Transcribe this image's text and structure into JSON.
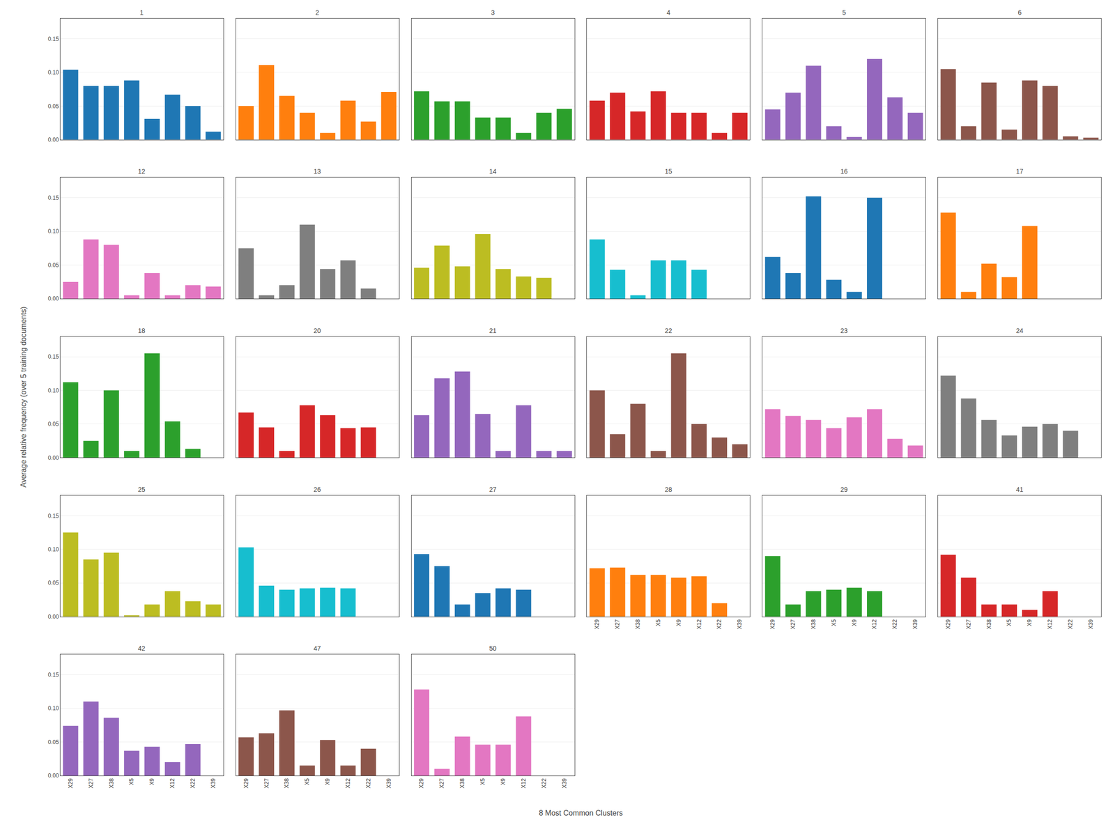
{
  "xlabel": "8 Most Common Clusters",
  "ylabel": "Average relative frequency (over 5 training documents)",
  "chart_data": [
    {
      "type": "bar",
      "title": "1",
      "categories": [
        "X29",
        "X27",
        "X38",
        "X5",
        "X9",
        "X12",
        "X22",
        "X39"
      ],
      "values": [
        0.104,
        0.08,
        0.08,
        0.088,
        0.031,
        0.067,
        0.05,
        0.012
      ],
      "ylim": [
        0.0,
        0.18
      ],
      "yticks": [
        {
          "value": 0.0,
          "label": "0.00"
        },
        0.05,
        {
          "value": 0.1,
          "label": "0.10"
        },
        0.15
      ],
      "grid": true,
      "tick_labels": "y"
    },
    {
      "type": "bar",
      "title": "2",
      "categories": [
        "X29",
        "X27",
        "X38",
        "X5",
        "X9",
        "X12",
        "X22",
        "X39"
      ],
      "values": [
        0.05,
        0.111,
        0.065,
        0.04,
        0.01,
        0.058,
        0.027,
        0.071
      ],
      "ylim": [
        0.0,
        0.18
      ],
      "yticks": [
        {
          "value": 0.0,
          "label": "0.00"
        },
        0.05,
        {
          "value": 0.1,
          "label": "0.10"
        },
        0.15
      ],
      "grid": true,
      "tick_labels": false
    },
    {
      "type": "bar",
      "title": "3",
      "categories": [
        "X29",
        "X27",
        "X38",
        "X5",
        "X9",
        "X12",
        "X22",
        "X39"
      ],
      "values": [
        0.072,
        0.057,
        0.057,
        0.033,
        0.033,
        0.01,
        0.04,
        0.046
      ],
      "ylim": [
        0.0,
        0.18
      ],
      "yticks": [
        {
          "value": 0.0,
          "label": "0.00"
        },
        0.05,
        {
          "value": 0.1,
          "label": "0.10"
        },
        0.15
      ],
      "grid": true,
      "tick_labels": false
    },
    {
      "type": "bar",
      "title": "4",
      "categories": [
        "X29",
        "X27",
        "X38",
        "X5",
        "X9",
        "X12",
        "X22",
        "X39"
      ],
      "values": [
        0.058,
        0.07,
        0.042,
        0.072,
        0.04,
        0.04,
        0.01,
        0.04
      ],
      "ylim": [
        0.0,
        0.18
      ],
      "yticks": [
        {
          "value": 0.0,
          "label": "0.00"
        },
        0.05,
        {
          "value": 0.1,
          "label": "0.10"
        },
        0.15
      ],
      "grid": true,
      "tick_labels": false
    },
    {
      "type": "bar",
      "title": "5",
      "categories": [
        "X29",
        "X27",
        "X38",
        "X5",
        "X9",
        "X12",
        "X22",
        "X39"
      ],
      "values": [
        0.045,
        0.07,
        0.11,
        0.02,
        0.004,
        0.12,
        0.063,
        0.04
      ],
      "ylim": [
        0.0,
        0.18
      ],
      "yticks": [
        {
          "value": 0.0,
          "label": "0.00"
        },
        0.05,
        {
          "value": 0.1,
          "label": "0.10"
        },
        0.15
      ],
      "grid": true,
      "tick_labels": false
    },
    {
      "type": "bar",
      "title": "6",
      "categories": [
        "X29",
        "X27",
        "X38",
        "X5",
        "X9",
        "X12",
        "X22",
        "X39"
      ],
      "values": [
        0.105,
        0.02,
        0.085,
        0.015,
        0.088,
        0.08,
        0.005,
        0.003
      ],
      "ylim": [
        0.0,
        0.18
      ],
      "yticks": [
        {
          "value": 0.0,
          "label": "0.00"
        },
        0.05,
        {
          "value": 0.1,
          "label": "0.10"
        },
        0.15
      ],
      "grid": true,
      "tick_labels": false
    },
    {
      "type": "bar",
      "title": "12",
      "categories": [
        "X29",
        "X27",
        "X38",
        "X5",
        "X9",
        "X12",
        "X22",
        "X39"
      ],
      "values": [
        0.025,
        0.088,
        0.08,
        0.005,
        0.038,
        0.005,
        0.02,
        0.018
      ],
      "ylim": [
        0.0,
        0.18
      ],
      "yticks": [
        {
          "value": 0.0,
          "label": "0.00"
        },
        0.05,
        {
          "value": 0.1,
          "label": "0.10"
        },
        0.15
      ],
      "grid": true,
      "tick_labels": "y"
    },
    {
      "type": "bar",
      "title": "13",
      "categories": [
        "X29",
        "X27",
        "X38",
        "X5",
        "X9",
        "X12",
        "X22",
        "X39"
      ],
      "values": [
        0.075,
        0.005,
        0.02,
        0.11,
        0.044,
        0.057,
        0.015,
        0.0
      ],
      "ylim": [
        0.0,
        0.18
      ],
      "yticks": [
        {
          "value": 0.0,
          "label": "0.00"
        },
        0.05,
        {
          "value": 0.1,
          "label": "0.10"
        },
        0.15
      ],
      "grid": true,
      "tick_labels": false
    },
    {
      "type": "bar",
      "title": "14",
      "categories": [
        "X29",
        "X27",
        "X38",
        "X5",
        "X9",
        "X12",
        "X22",
        "X39"
      ],
      "values": [
        0.046,
        0.079,
        0.048,
        0.096,
        0.044,
        0.033,
        0.031,
        0.0
      ],
      "ylim": [
        0.0,
        0.18
      ],
      "yticks": [
        {
          "value": 0.0,
          "label": "0.00"
        },
        0.05,
        {
          "value": 0.1,
          "label": "0.10"
        },
        0.15
      ],
      "grid": true,
      "tick_labels": false
    },
    {
      "type": "bar",
      "title": "15",
      "categories": [
        "X29",
        "X27",
        "X38",
        "X5",
        "X9",
        "X12",
        "X22",
        "X39"
      ],
      "values": [
        0.088,
        0.043,
        0.005,
        0.057,
        0.057,
        0.043,
        0.0,
        0.0
      ],
      "ylim": [
        0.0,
        0.18
      ],
      "yticks": [
        {
          "value": 0.0,
          "label": "0.00"
        },
        0.05,
        {
          "value": 0.1,
          "label": "0.10"
        },
        0.15
      ],
      "grid": true,
      "tick_labels": false
    },
    {
      "type": "bar",
      "title": "16",
      "categories": [
        "X29",
        "X27",
        "X38",
        "X5",
        "X9",
        "X12",
        "X22",
        "X39"
      ],
      "values": [
        0.062,
        0.038,
        0.152,
        0.028,
        0.01,
        0.15,
        0.0,
        0.0
      ],
      "ylim": [
        0.0,
        0.18
      ],
      "yticks": [
        {
          "value": 0.0,
          "label": "0.00"
        },
        0.05,
        {
          "value": 0.1,
          "label": "0.10"
        },
        0.15
      ],
      "grid": true,
      "tick_labels": false
    },
    {
      "type": "bar",
      "title": "17",
      "categories": [
        "X29",
        "X27",
        "X38",
        "X5",
        "X9",
        "X12",
        "X22",
        "X39"
      ],
      "values": [
        0.128,
        0.01,
        0.052,
        0.032,
        0.108,
        0.0,
        0.0,
        0.0
      ],
      "ylim": [
        0.0,
        0.18
      ],
      "yticks": [
        {
          "value": 0.0,
          "label": "0.00"
        },
        0.05,
        {
          "value": 0.1,
          "label": "0.10"
        },
        0.15
      ],
      "grid": true,
      "tick_labels": false
    },
    {
      "type": "bar",
      "title": "18",
      "categories": [
        "X29",
        "X27",
        "X38",
        "X5",
        "X9",
        "X12",
        "X22",
        "X39"
      ],
      "values": [
        0.112,
        0.025,
        0.1,
        0.01,
        0.155,
        0.054,
        0.013,
        0.0
      ],
      "ylim": [
        0.0,
        0.18
      ],
      "yticks": [
        {
          "value": 0.0,
          "label": "0.00"
        },
        0.05,
        {
          "value": 0.1,
          "label": "0.10"
        },
        0.15
      ],
      "grid": true,
      "tick_labels": "y"
    },
    {
      "type": "bar",
      "title": "20",
      "categories": [
        "X29",
        "X27",
        "X38",
        "X5",
        "X9",
        "X12",
        "X22",
        "X39"
      ],
      "values": [
        0.067,
        0.045,
        0.01,
        0.078,
        0.063,
        0.044,
        0.045,
        0.0
      ],
      "ylim": [
        0.0,
        0.18
      ],
      "yticks": [
        {
          "value": 0.0,
          "label": "0.00"
        },
        0.05,
        {
          "value": 0.1,
          "label": "0.10"
        },
        0.15
      ],
      "grid": true,
      "tick_labels": false
    },
    {
      "type": "bar",
      "title": "21",
      "categories": [
        "X29",
        "X27",
        "X38",
        "X5",
        "X9",
        "X12",
        "X22",
        "X39"
      ],
      "values": [
        0.063,
        0.118,
        0.128,
        0.065,
        0.01,
        0.078,
        0.01,
        0.01
      ],
      "ylim": [
        0.0,
        0.18
      ],
      "yticks": [
        {
          "value": 0.0,
          "label": "0.00"
        },
        0.05,
        {
          "value": 0.1,
          "label": "0.10"
        },
        0.15
      ],
      "grid": true,
      "tick_labels": false
    },
    {
      "type": "bar",
      "title": "22",
      "categories": [
        "X29",
        "X27",
        "X38",
        "X5",
        "X9",
        "X12",
        "X22",
        "X39"
      ],
      "values": [
        0.1,
        0.035,
        0.08,
        0.01,
        0.155,
        0.05,
        0.03,
        0.02
      ],
      "ylim": [
        0.0,
        0.18
      ],
      "yticks": [
        {
          "value": 0.0,
          "label": "0.00"
        },
        0.05,
        {
          "value": 0.1,
          "label": "0.10"
        },
        0.15
      ],
      "grid": true,
      "tick_labels": false
    },
    {
      "type": "bar",
      "title": "23",
      "categories": [
        "X29",
        "X27",
        "X38",
        "X5",
        "X9",
        "X12",
        "X22",
        "X39"
      ],
      "values": [
        0.072,
        0.062,
        0.056,
        0.044,
        0.06,
        0.072,
        0.028,
        0.018
      ],
      "ylim": [
        0.0,
        0.18
      ],
      "yticks": [
        {
          "value": 0.0,
          "label": "0.00"
        },
        0.05,
        {
          "value": 0.1,
          "label": "0.10"
        },
        0.15
      ],
      "grid": true,
      "tick_labels": false
    },
    {
      "type": "bar",
      "title": "24",
      "categories": [
        "X29",
        "X27",
        "X38",
        "X5",
        "X9",
        "X12",
        "X22",
        "X39"
      ],
      "values": [
        0.122,
        0.088,
        0.056,
        0.033,
        0.046,
        0.05,
        0.04,
        0.0
      ],
      "ylim": [
        0.0,
        0.18
      ],
      "yticks": [
        {
          "value": 0.0,
          "label": "0.00"
        },
        0.05,
        {
          "value": 0.1,
          "label": "0.10"
        },
        0.15
      ],
      "grid": true,
      "tick_labels": false
    },
    {
      "type": "bar",
      "title": "25",
      "categories": [
        "X29",
        "X27",
        "X38",
        "X5",
        "X9",
        "X12",
        "X22",
        "X39"
      ],
      "values": [
        0.125,
        0.085,
        0.095,
        0.002,
        0.018,
        0.038,
        0.023,
        0.018
      ],
      "ylim": [
        0.0,
        0.18
      ],
      "yticks": [
        {
          "value": 0.0,
          "label": "0.00"
        },
        0.05,
        {
          "value": 0.1,
          "label": "0.10"
        },
        0.15
      ],
      "grid": true,
      "tick_labels": "y"
    },
    {
      "type": "bar",
      "title": "26",
      "categories": [
        "X29",
        "X27",
        "X38",
        "X5",
        "X9",
        "X12",
        "X22",
        "X39"
      ],
      "values": [
        0.103,
        0.046,
        0.04,
        0.042,
        0.043,
        0.042,
        0.0,
        0.0
      ],
      "ylim": [
        0.0,
        0.18
      ],
      "yticks": [
        {
          "value": 0.0,
          "label": "0.00"
        },
        0.05,
        {
          "value": 0.1,
          "label": "0.10"
        },
        0.15
      ],
      "grid": true,
      "tick_labels": false
    },
    {
      "type": "bar",
      "title": "27",
      "categories": [
        "X29",
        "X27",
        "X38",
        "X5",
        "X9",
        "X12",
        "X22",
        "X39"
      ],
      "values": [
        0.093,
        0.075,
        0.018,
        0.035,
        0.042,
        0.04,
        0.0,
        0.0
      ],
      "ylim": [
        0.0,
        0.18
      ],
      "yticks": [
        {
          "value": 0.0,
          "label": "0.00"
        },
        0.05,
        {
          "value": 0.1,
          "label": "0.10"
        },
        0.15
      ],
      "grid": true,
      "tick_labels": false
    },
    {
      "type": "bar",
      "title": "28",
      "categories": [
        "X29",
        "X27",
        "X38",
        "X5",
        "X9",
        "X12",
        "X22",
        "X39"
      ],
      "values": [
        0.072,
        0.073,
        0.062,
        0.062,
        0.058,
        0.06,
        0.02,
        0.0
      ],
      "ylim": [
        0.0,
        0.18
      ],
      "yticks": [
        {
          "value": 0.0,
          "label": "0.00"
        },
        0.05,
        {
          "value": 0.1,
          "label": "0.10"
        },
        0.15
      ],
      "grid": true,
      "tick_labels": "x"
    },
    {
      "type": "bar",
      "title": "29",
      "categories": [
        "X29",
        "X27",
        "X38",
        "X5",
        "X9",
        "X12",
        "X22",
        "X39"
      ],
      "values": [
        0.09,
        0.018,
        0.038,
        0.04,
        0.043,
        0.038,
        0.0,
        0.0
      ],
      "ylim": [
        0.0,
        0.18
      ],
      "yticks": [
        {
          "value": 0.0,
          "label": "0.00"
        },
        0.05,
        {
          "value": 0.1,
          "label": "0.10"
        },
        0.15
      ],
      "grid": true,
      "tick_labels": "x"
    },
    {
      "type": "bar",
      "title": "41",
      "categories": [
        "X29",
        "X27",
        "X38",
        "X5",
        "X9",
        "X12",
        "X22",
        "X39"
      ],
      "values": [
        0.092,
        0.058,
        0.018,
        0.018,
        0.01,
        0.038,
        0.0,
        0.0
      ],
      "ylim": [
        0.0,
        0.18
      ],
      "yticks": [
        {
          "value": 0.0,
          "label": "0.00"
        },
        0.05,
        {
          "value": 0.1,
          "label": "0.10"
        },
        0.15
      ],
      "grid": true,
      "tick_labels": "x"
    },
    {
      "type": "bar",
      "title": "42",
      "categories": [
        "X29",
        "X27",
        "X38",
        "X5",
        "X9",
        "X12",
        "X22",
        "X39"
      ],
      "values": [
        0.074,
        0.11,
        0.086,
        0.037,
        0.043,
        0.02,
        0.047,
        0.0
      ],
      "ylim": [
        0.0,
        0.18
      ],
      "yticks": [
        {
          "value": 0.0,
          "label": "0.00"
        },
        0.05,
        {
          "value": 0.1,
          "label": "0.10"
        },
        0.15
      ],
      "grid": true
    },
    {
      "type": "bar",
      "title": "47",
      "categories": [
        "X29",
        "X27",
        "X38",
        "X5",
        "X9",
        "X12",
        "X22",
        "X39"
      ],
      "values": [
        0.057,
        0.063,
        0.097,
        0.015,
        0.053,
        0.015,
        0.04,
        0.0
      ],
      "ylim": [
        0.0,
        0.18
      ],
      "yticks": [
        {
          "value": 0.0,
          "label": "0.00"
        },
        0.05,
        {
          "value": 0.1,
          "label": "0.10"
        },
        0.15
      ],
      "grid": true,
      "tick_labels": "x"
    },
    {
      "type": "bar",
      "title": "50",
      "categories": [
        "X29",
        "X27",
        "X38",
        "X5",
        "X9",
        "X12",
        "X22",
        "X39"
      ],
      "values": [
        0.128,
        0.01,
        0.058,
        0.046,
        0.046,
        0.088,
        0.0,
        0.0
      ],
      "ylim": [
        0.0,
        0.18
      ],
      "yticks": [
        {
          "value": 0.0,
          "label": "0.00"
        },
        0.05,
        {
          "value": 0.1,
          "label": "0.10"
        },
        0.15
      ],
      "grid": true,
      "tick_labels": "x"
    }
  ]
}
